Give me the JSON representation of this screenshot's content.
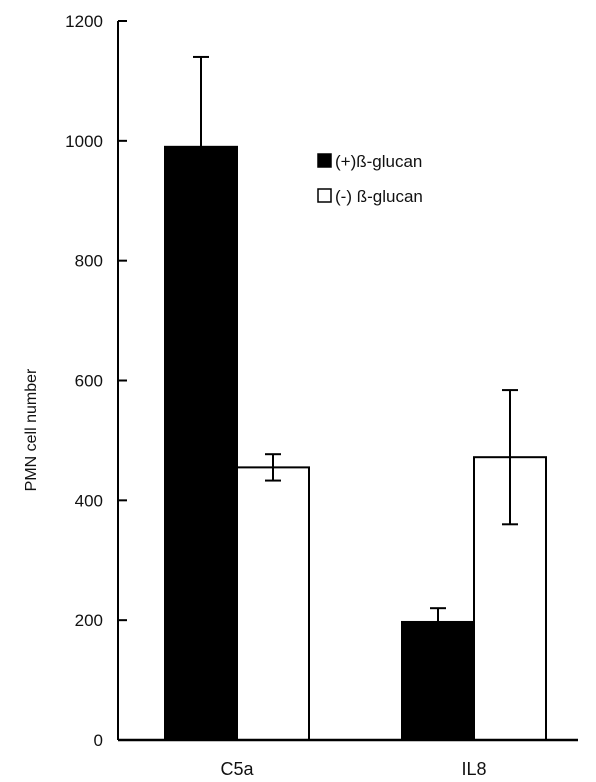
{
  "chart_data": {
    "type": "bar",
    "categories": [
      "C5a",
      "IL8"
    ],
    "ylabel": "PMN cell number",
    "xlabel": "",
    "ylim": [
      0,
      1200
    ],
    "yticks": [
      0,
      200,
      400,
      600,
      800,
      1000,
      1200
    ],
    "legend_position": "top-right",
    "grid": false,
    "series": [
      {
        "name": "(+)ß-glucan",
        "color": "#000000",
        "values": [
          990,
          197
        ],
        "errors": [
          150,
          23
        ]
      },
      {
        "name": "(-) ß-glucan",
        "color": "#ffffff",
        "values": [
          455,
          472
        ],
        "errors": [
          22,
          112
        ]
      }
    ]
  }
}
